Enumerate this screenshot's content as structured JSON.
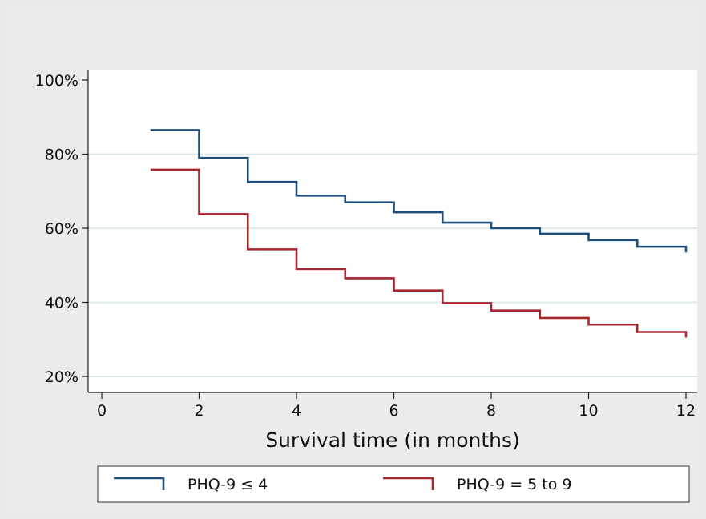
{
  "chart_data": {
    "type": "line",
    "subtype": "step",
    "title": "",
    "xlabel": "Survival time (in months)",
    "ylabel": "",
    "xlim": [
      0,
      12
    ],
    "ylim": [
      20,
      100
    ],
    "xticks": [
      0,
      2,
      4,
      6,
      8,
      10,
      12
    ],
    "yticks": [
      20,
      40,
      60,
      80,
      100
    ],
    "yticklabels": [
      "20%",
      "40%",
      "60%",
      "80%",
      "100%"
    ],
    "grid": true,
    "legend_position": "bottom",
    "series": [
      {
        "name": "PHQ-9 ≤ 4",
        "color": "#1f4e79",
        "x": [
          1,
          2,
          3,
          4,
          5,
          6,
          7,
          8,
          9,
          10,
          11,
          12
        ],
        "y": [
          86.5,
          79.0,
          72.5,
          68.8,
          67.0,
          64.3,
          61.5,
          60.0,
          58.5,
          56.8,
          55.0,
          53.5
        ]
      },
      {
        "name": "PHQ-9 = 5 to 9",
        "color": "#a6262f",
        "x": [
          1,
          2,
          3,
          4,
          5,
          6,
          7,
          8,
          9,
          10,
          11,
          12
        ],
        "y": [
          75.8,
          63.8,
          54.3,
          49.0,
          46.5,
          43.2,
          39.8,
          37.8,
          35.8,
          34.0,
          32.0,
          30.5
        ]
      }
    ]
  }
}
